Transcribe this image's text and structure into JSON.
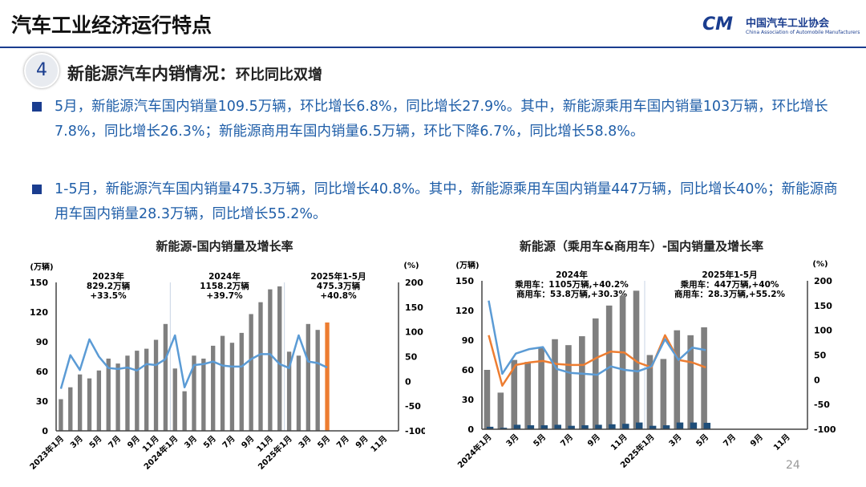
{
  "header": {
    "title": "汽车工业经济运行特点",
    "logo_cn": "中国汽车工业协会",
    "logo_en": "China Association of Automobile Manufacturers",
    "logo_mark": "CM"
  },
  "section": {
    "number": "4",
    "title": "新能源汽车内销情况：",
    "subtitle": "环比同比双增"
  },
  "bullets": [
    "5月，新能源汽车国内销量109.5万辆，环比增长6.8%，同比增长27.9%。其中，新能源乘用车国内销量103万辆，环比增长7.8%，同比增长26.3%；新能源商用车国内销量6.5万辆，环比下降6.7%，同比增长58.8%。",
    "1-5月，新能源汽车国内销量475.3万辆，同比增长40.8%。其中，新能源乘用车国内销量447万辆，同比增长40%；新能源商用车国内销量28.3万辆，同比增长55.2%。"
  ],
  "page_number": "24",
  "colors": {
    "bar": "#7f7f7f",
    "highlight_bar": "#ed7d31",
    "line_blue": "#5b9bd5",
    "line_orange": "#ed7d31",
    "commercial_bar": "#1f4e79",
    "accent": "#1a3d8f"
  },
  "chart_data": [
    {
      "type": "bar+line",
      "title": "新能源-国内销量及增长率",
      "ylabel_left": "(万辆)",
      "ylabel_right": "(%)",
      "ylim_left": [
        0,
        150
      ],
      "ylim_right": [
        -100,
        200
      ],
      "yticks_left": [
        "0",
        "30",
        "60",
        "90",
        "120",
        "150"
      ],
      "yticks_right": [
        "-100",
        "-50",
        "0",
        "50",
        "100",
        "150",
        "200"
      ],
      "xticks": [
        "2023年1月",
        "3月",
        "5月",
        "7月",
        "9月",
        "11月",
        "2024年1月",
        "3月",
        "5月",
        "7月",
        "9月",
        "11月",
        "2025年1月",
        "3月",
        "5月",
        "7月",
        "9月",
        "11月"
      ],
      "annotations": [
        [
          "2023年",
          "829.2万辆",
          "+33.5%"
        ],
        [
          "2024年",
          "1158.2万辆",
          "+39.7%"
        ],
        [
          "2025年1-5月",
          "475.3万辆",
          "+40.8%"
        ]
      ],
      "series": [
        {
          "type": "bar",
          "axis": "left",
          "values": [
            32,
            44,
            57,
            53,
            61,
            73,
            68,
            76,
            81,
            83,
            92,
            108,
            63,
            40,
            76,
            73,
            86,
            96,
            89,
            99,
            118,
            130,
            143,
            146,
            80,
            76,
            108,
            102,
            109.5
          ]
        },
        {
          "type": "line",
          "axis": "right",
          "values": [
            -15,
            53,
            23,
            85,
            50,
            27,
            25,
            28,
            22,
            35,
            33,
            45,
            93,
            -12,
            33,
            35,
            40,
            32,
            30,
            30,
            45,
            55,
            55,
            35,
            27,
            93,
            40,
            37,
            28
          ]
        }
      ]
    },
    {
      "type": "bar+line",
      "title": "新能源（乘用车&商用车）-国内销量及增长率",
      "ylabel_left": "(万辆)",
      "ylabel_right": "(%)",
      "ylim_left": [
        0,
        150
      ],
      "ylim_right": [
        -100,
        200
      ],
      "yticks_left": [
        "0",
        "30",
        "60",
        "90",
        "120",
        "150"
      ],
      "yticks_right": [
        "-100",
        "-50",
        "0",
        "50",
        "100",
        "150",
        "200"
      ],
      "xticks": [
        "2024年1月",
        "3月",
        "5月",
        "7月",
        "9月",
        "11月",
        "2025年1月",
        "3月",
        "5月",
        "7月",
        "9月",
        "11月"
      ],
      "annotations": [
        [
          "2024年",
          "乘用车：1105万辆,+40.2%",
          "商用车：53.8万辆,+30.3%"
        ],
        [
          "2025年1-5月",
          "乘用车：447万辆,+40%",
          "商用车：28.3万辆,+55.2%"
        ]
      ],
      "series": [
        {
          "type": "bar",
          "axis": "left",
          "values": [
            60,
            37,
            70,
            68,
            82,
            91,
            85,
            94,
            112,
            125,
            135,
            140,
            75,
            71,
            100,
            95,
            103
          ]
        },
        {
          "type": "bar",
          "axis": "left",
          "values": [
            2.5,
            1.5,
            4.5,
            4,
            4,
            4.5,
            3.5,
            4,
            4.5,
            5,
            5.5,
            6.8,
            3.5,
            4,
            6.8,
            6.8,
            6.5
          ]
        },
        {
          "type": "line",
          "axis": "right",
          "color": "orange",
          "values": [
            90,
            -12,
            30,
            35,
            38,
            32,
            30,
            30,
            45,
            57,
            55,
            35,
            25,
            90,
            40,
            35,
            25
          ]
        },
        {
          "type": "line",
          "axis": "right",
          "color": "blue",
          "values": [
            160,
            12,
            53,
            62,
            66,
            22,
            14,
            12,
            10,
            27,
            20,
            17,
            27,
            82,
            40,
            65,
            60
          ]
        }
      ]
    }
  ]
}
